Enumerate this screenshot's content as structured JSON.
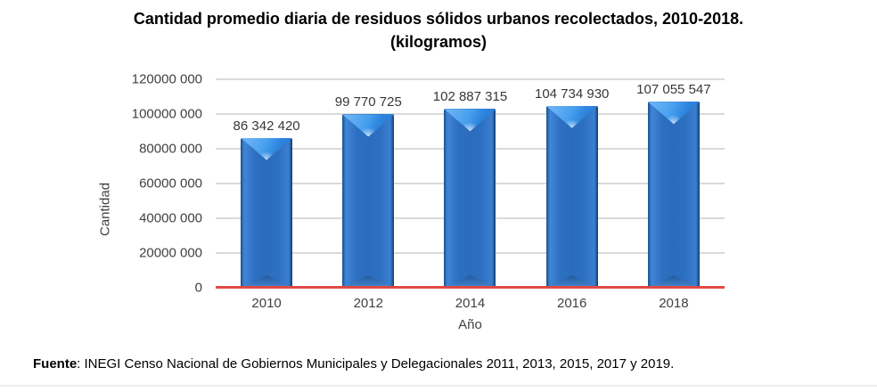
{
  "title": {
    "line1": "Cantidad promedio diaria de residuos sólidos urbanos recolectados, 2010-2018.",
    "line2": "(kilogramos)"
  },
  "footer": {
    "source_label": "Fuente",
    "source_text": ": INEGI Censo Nacional de Gobiernos Municipales y Delegacionales 2011, 2013, 2015, 2017 y 2019."
  },
  "colors": {
    "bar_body": "#2b6cbd",
    "bar_bevel_light": "#74b8f5",
    "bar_edge_dark": "#16508f",
    "baseline_red": "#df4a44",
    "gridline_gray": "#dadada",
    "text_gray": "#414141",
    "title_black": "#000000"
  },
  "chart_data": {
    "type": "bar",
    "title": "Cantidad promedio diaria de residuos sólidos urbanos recolectados, 2010-2018. (kilogramos)",
    "categories": [
      "2010",
      "2012",
      "2014",
      "2016",
      "2018"
    ],
    "values": [
      86342420,
      99770725,
      102887315,
      104734930,
      107055547
    ],
    "value_labels": [
      "86 342 420",
      "99 770 725",
      "102 887 315",
      "104 734 930",
      "107 055 547"
    ],
    "xlabel": "Año",
    "ylabel": "Cantidad",
    "ylim": [
      0,
      120000000
    ],
    "yticks": [
      0,
      20000000,
      40000000,
      60000000,
      80000000,
      100000000,
      120000000
    ],
    "ytick_labels": [
      "0",
      "20000 000",
      "40000 000",
      "60000 000",
      "80000 000",
      "100000 000",
      "120000 000"
    ],
    "grid": "horizontal",
    "legend": "none",
    "baseline": "red"
  }
}
